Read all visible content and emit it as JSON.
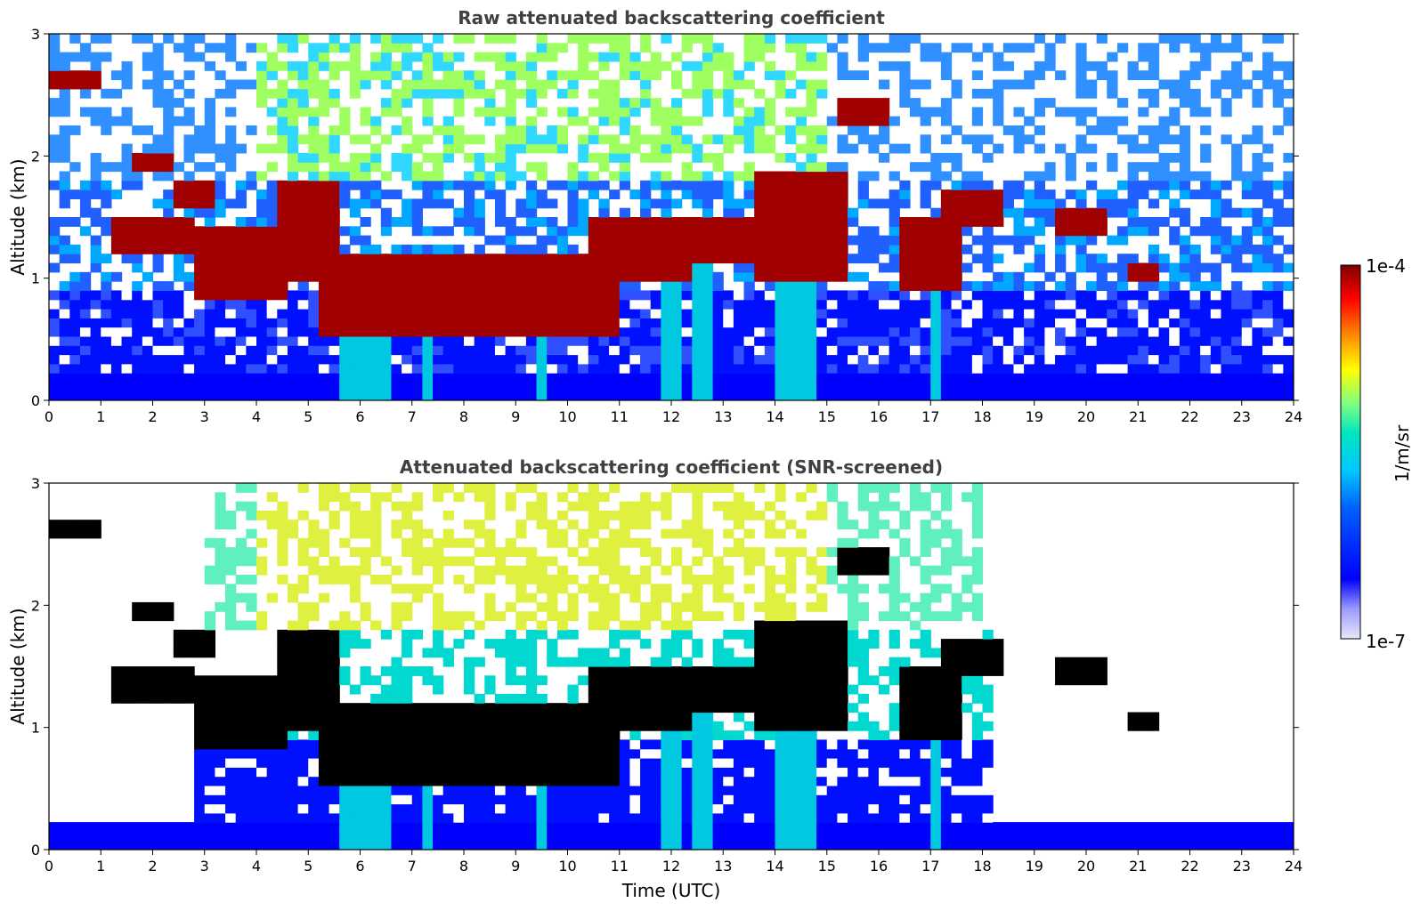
{
  "chart_data": [
    {
      "type": "heatmap",
      "title": "Raw attenuated backscattering coefficient",
      "xlabel": "",
      "ylabel": "Altitude (km)",
      "xlim": [
        0,
        24
      ],
      "ylim": [
        0,
        3
      ],
      "xticks": [
        "0",
        "1",
        "2",
        "3",
        "4",
        "5",
        "6",
        "7",
        "8",
        "9",
        "10",
        "11",
        "12",
        "13",
        "14",
        "15",
        "16",
        "17",
        "18",
        "19",
        "20",
        "21",
        "22",
        "23",
        "24"
      ],
      "yticks": [
        "0",
        "1",
        "2",
        "3"
      ],
      "screened": false,
      "cloud_layers": [
        {
          "t": [
            0,
            1.0
          ],
          "z": [
            2.55,
            2.7
          ]
        },
        {
          "t": [
            1.2,
            2.7
          ],
          "z": [
            1.2,
            1.5
          ]
        },
        {
          "t": [
            1.6,
            2.3
          ],
          "z": [
            1.85,
            2.05
          ]
        },
        {
          "t": [
            2.4,
            3.1
          ],
          "z": [
            1.6,
            1.8
          ]
        },
        {
          "t": [
            2.8,
            4.6
          ],
          "z": [
            0.85,
            1.4
          ]
        },
        {
          "t": [
            4.5,
            5.6
          ],
          "z": [
            1.0,
            1.8
          ]
        },
        {
          "t": [
            5.2,
            11.0
          ],
          "z": [
            0.5,
            1.2
          ]
        },
        {
          "t": [
            10.5,
            12.3
          ],
          "z": [
            1.0,
            1.5
          ]
        },
        {
          "t": [
            12.4,
            13.8
          ],
          "z": [
            1.1,
            1.5
          ]
        },
        {
          "t": [
            13.7,
            15.3
          ],
          "z": [
            1.0,
            1.9
          ]
        },
        {
          "t": [
            15.3,
            16.1
          ],
          "z": [
            2.25,
            2.5
          ]
        },
        {
          "t": [
            16.5,
            17.5
          ],
          "z": [
            0.9,
            1.5
          ]
        },
        {
          "t": [
            17.3,
            18.3
          ],
          "z": [
            1.4,
            1.7
          ]
        },
        {
          "t": [
            19.4,
            20.4
          ],
          "z": [
            1.35,
            1.6
          ]
        },
        {
          "t": [
            20.9,
            21.3
          ],
          "z": [
            1.0,
            1.1
          ]
        }
      ],
      "rain_columns": [
        5.8,
        6.1,
        6.4,
        7.3,
        9.5,
        11.9,
        12.1,
        12.6,
        14.2,
        14.5,
        14.7,
        17.1
      ]
    },
    {
      "type": "heatmap",
      "title": "Attenuated backscattering coefficient (SNR-screened)",
      "xlabel": "Time (UTC)",
      "ylabel": "Altitude (km)",
      "xlim": [
        0,
        24
      ],
      "ylim": [
        0,
        3
      ],
      "xticks": [
        "0",
        "1",
        "2",
        "3",
        "4",
        "5",
        "6",
        "7",
        "8",
        "9",
        "10",
        "11",
        "12",
        "13",
        "14",
        "15",
        "16",
        "17",
        "18",
        "19",
        "20",
        "21",
        "22",
        "23",
        "24"
      ],
      "yticks": [
        "0",
        "1",
        "2",
        "3"
      ],
      "screened": true
    }
  ],
  "colorbar": {
    "label": "1/m/sr",
    "max_label": "1e-4",
    "min_label": "1e-7",
    "scale": "log",
    "colormap": "jet",
    "colors": [
      "#e8e8f8",
      "#0000ff",
      "#00a0ff",
      "#00e0e0",
      "#80ff80",
      "#ffff00",
      "#ff8000",
      "#ff0000",
      "#800000"
    ]
  }
}
